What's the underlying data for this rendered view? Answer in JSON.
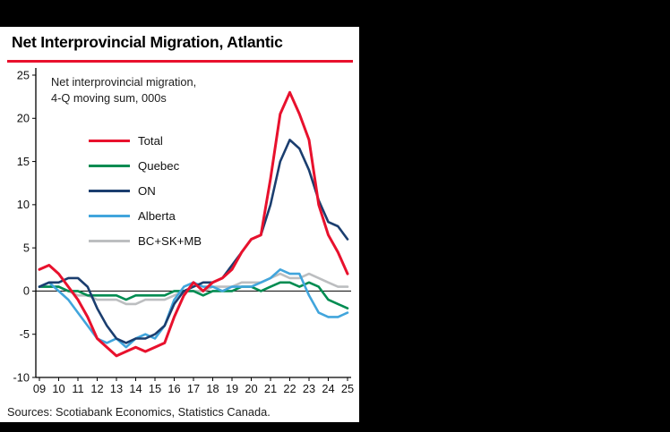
{
  "page": {
    "background": "#000000"
  },
  "chart": {
    "title": "Net Interprovincial Migration, Atlantic",
    "note_lines": [
      "Net interprovincial migration,",
      "4-Q moving sum, 000s"
    ],
    "source": "Sources: Scotiabank Economics, Statistics Canada.",
    "accent_red": "#e8112d"
  },
  "chart_data": {
    "type": "line",
    "title": "Net Interprovincial Migration, Atlantic",
    "subtitle": "Net interprovincial migration, 4-Q moving sum, 000s",
    "xlabel": "",
    "ylabel": "",
    "ylim": [
      -10,
      25
    ],
    "yticks": [
      25,
      20,
      15,
      10,
      5,
      0,
      -5,
      -10
    ],
    "grid": false,
    "legend_position": "upper-left",
    "xtick_labels": [
      "09",
      "10",
      "11",
      "12",
      "13",
      "14",
      "15",
      "16",
      "17",
      "18",
      "19",
      "20",
      "21",
      "22",
      "23",
      "24",
      "25"
    ],
    "x": [
      2009,
      2009.5,
      2010,
      2010.5,
      2011,
      2011.5,
      2012,
      2012.5,
      2013,
      2013.5,
      2014,
      2014.5,
      2015,
      2015.5,
      2016,
      2016.5,
      2017,
      2017.5,
      2018,
      2018.5,
      2019,
      2019.5,
      2020,
      2020.5,
      2021,
      2021.5,
      2022,
      2022.5,
      2023,
      2023.5,
      2024,
      2024.5,
      2025
    ],
    "series": [
      {
        "name": "Total",
        "color": "#e8112d",
        "values": [
          2.5,
          3.0,
          2.0,
          0.5,
          -1.0,
          -3.0,
          -5.5,
          -6.5,
          -7.5,
          -7.0,
          -6.5,
          -7.0,
          -6.5,
          -6.0,
          -3.0,
          -0.5,
          1.0,
          0.0,
          1.0,
          1.5,
          2.5,
          4.5,
          6.0,
          6.5,
          13.0,
          20.5,
          23.0,
          20.5,
          17.5,
          10.0,
          6.5,
          4.5,
          2.0
        ]
      },
      {
        "name": "Quebec",
        "color": "#008c51",
        "values": [
          0.5,
          0.5,
          0.5,
          0.0,
          0.0,
          -0.5,
          -0.5,
          -0.5,
          -0.5,
          -1.0,
          -0.5,
          -0.5,
          -0.5,
          -0.5,
          0.0,
          0.0,
          0.0,
          -0.5,
          0.0,
          0.0,
          0.0,
          0.5,
          0.5,
          0.0,
          0.5,
          1.0,
          1.0,
          0.5,
          1.0,
          0.5,
          -1.0,
          -1.5,
          -2.0
        ]
      },
      {
        "name": "ON",
        "color": "#1b3e6f",
        "values": [
          0.5,
          1.0,
          1.0,
          1.5,
          1.5,
          0.5,
          -2.0,
          -4.0,
          -5.5,
          -6.0,
          -5.5,
          -5.5,
          -5.0,
          -4.0,
          -1.5,
          0.0,
          0.5,
          1.0,
          1.0,
          1.5,
          3.0,
          4.5,
          6.0,
          6.5,
          10.0,
          15.0,
          17.5,
          16.5,
          14.0,
          10.5,
          8.0,
          7.5,
          6.0
        ]
      },
      {
        "name": "Alberta",
        "color": "#41a5dc",
        "values": [
          0.5,
          1.0,
          0.0,
          -1.0,
          -2.5,
          -4.0,
          -5.5,
          -6.0,
          -5.5,
          -6.5,
          -5.5,
          -5.0,
          -5.5,
          -4.0,
          -1.0,
          0.5,
          1.0,
          0.5,
          0.5,
          0.0,
          0.5,
          0.5,
          0.5,
          1.0,
          1.5,
          2.5,
          2.0,
          2.0,
          -0.5,
          -2.5,
          -3.0,
          -3.0,
          -2.5
        ]
      },
      {
        "name": "BC+SK+MB",
        "color": "#bcbec0",
        "values": [
          0.5,
          0.5,
          0.5,
          0.0,
          -0.5,
          -0.5,
          -1.0,
          -1.0,
          -1.0,
          -1.5,
          -1.5,
          -1.0,
          -1.0,
          -1.0,
          -0.5,
          0.0,
          0.0,
          0.0,
          0.5,
          0.5,
          0.5,
          1.0,
          1.0,
          1.0,
          1.5,
          2.0,
          1.5,
          1.5,
          2.0,
          1.5,
          1.0,
          0.5,
          0.5
        ]
      }
    ],
    "source": "Sources: Scotiabank Economics, Statistics Canada."
  }
}
